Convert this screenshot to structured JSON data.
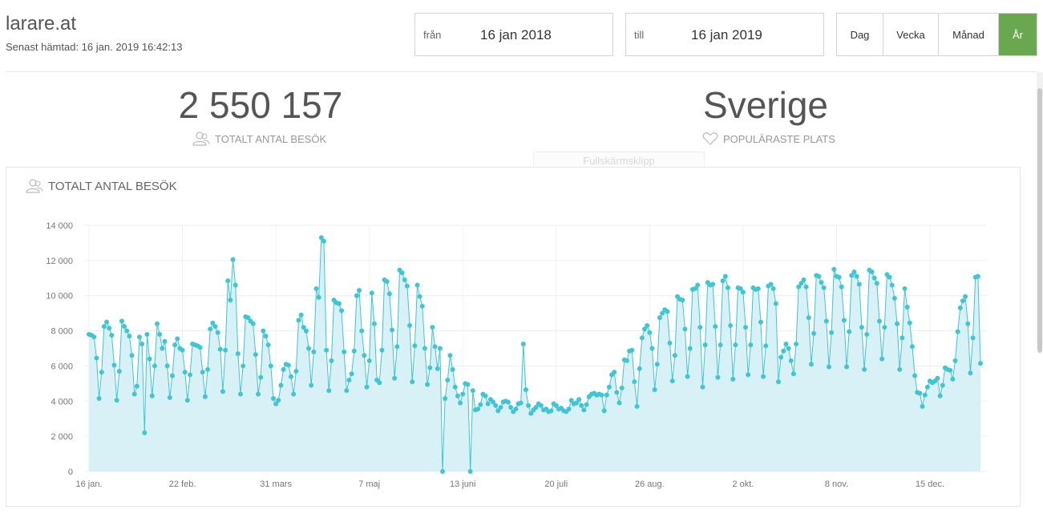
{
  "header": {
    "site_title": "larare.at",
    "last_fetched": "Senast hämtad: 16 jan. 2019 16:42:13"
  },
  "date_range": {
    "from_label": "från",
    "from_value": "16 jan 2018",
    "to_label": "till",
    "to_value": "16 jan 2019"
  },
  "range_buttons": {
    "day": "Dag",
    "week": "Vecka",
    "month": "Månad",
    "year": "År",
    "active": "year"
  },
  "stats": {
    "total_visits_value": "2 550 157",
    "total_visits_label": "TOTALT ANTAL BESÖK",
    "popular_place_value": "Sverige",
    "popular_place_label": "POPULÄRASTE PLATS"
  },
  "overlay": {
    "ghost_text": "Fullskärmsklipp"
  },
  "chart_card": {
    "title": "TOTALT ANTAL BESÖK"
  },
  "colors": {
    "accent_green": "#6aa84f",
    "series_line": "#3ec6d6",
    "series_fill": "#d6f0f5"
  },
  "chart_data": {
    "type": "area",
    "title": "TOTALT ANTAL BESÖK",
    "xlabel": "",
    "ylabel": "",
    "ylim": [
      0,
      14000
    ],
    "yticks": [
      0,
      2000,
      4000,
      6000,
      8000,
      10000,
      12000,
      14000
    ],
    "ytick_labels": [
      "0",
      "2 000",
      "4 000",
      "6 000",
      "8 000",
      "10 000",
      "12 000",
      "14 000"
    ],
    "xtick_labels": [
      "16 jan.",
      "22 feb.",
      "31 mars",
      "7 maj",
      "13 juni",
      "20 juli",
      "26 aug.",
      "2 okt.",
      "8 nov.",
      "15 dec."
    ],
    "xtick_days": [
      0,
      37,
      74,
      111,
      148,
      185,
      222,
      259,
      296,
      333
    ],
    "grid": true,
    "legend": "none",
    "series": [
      {
        "values": [
          7800,
          7750,
          7650,
          6450,
          4150,
          5650,
          8250,
          8500,
          8150,
          7750,
          6050,
          4050,
          5700,
          8550,
          8250,
          8000,
          7700,
          6600,
          4400,
          4850,
          7650,
          7250,
          2200,
          7800,
          6400,
          4300,
          6000,
          8400,
          7800,
          7000,
          7400,
          6000,
          4200,
          5450,
          7200,
          7550,
          7000,
          6900,
          5650,
          4050,
          5500,
          7250,
          7200,
          7150,
          7050,
          5650,
          4250,
          5800,
          8100,
          8450,
          8250,
          7900,
          6950,
          4550,
          6900,
          10850,
          9750,
          12050,
          10600,
          6700,
          4400,
          6000,
          8800,
          8750,
          8550,
          8400,
          6650,
          4400,
          5350,
          8000,
          7700,
          7200,
          6000,
          4150,
          3850,
          4050,
          4900,
          5800,
          6100,
          6050,
          5400,
          4400,
          5700,
          8600,
          8900,
          8200,
          8000,
          7000,
          4900,
          6800,
          10400,
          9900,
          13300,
          13100,
          6900,
          4600,
          6300,
          9750,
          9600,
          9550,
          9150,
          6800,
          4600,
          5200,
          5550,
          6850,
          10000,
          10300,
          8000,
          6600,
          4800,
          6300,
          10150,
          8400,
          5200,
          5050,
          6900,
          10900,
          10800,
          10100,
          8050,
          5300,
          7100,
          11450,
          11300,
          10900,
          10550,
          8300,
          5100,
          7150,
          10600,
          9950,
          9400,
          7000,
          4950,
          5900,
          8200,
          7100,
          5850,
          7000,
          0,
          4150,
          5200,
          6600,
          5800,
          4800,
          4300,
          3900,
          4400,
          5000,
          4950,
          0,
          4600,
          3500,
          3550,
          3800,
          4400,
          4300,
          3850,
          4100,
          3950,
          3750,
          3450,
          3650,
          3950,
          4000,
          3950,
          3650,
          3400,
          3550,
          3850,
          3900,
          7250,
          4650,
          3750,
          3300,
          3500,
          3650,
          3850,
          3750,
          3500,
          3550,
          3400,
          3450,
          3850,
          3750,
          3550,
          3600,
          3450,
          3400,
          3550,
          4050,
          3850,
          3900,
          4100,
          3750,
          3500,
          3800,
          4250,
          4400,
          4450,
          4350,
          4400,
          4350,
          3450,
          4350,
          4800,
          5500,
          5650,
          4500,
          3900,
          4750,
          6350,
          6300,
          6850,
          6900,
          5100,
          3700,
          5850,
          7600,
          8100,
          8300,
          7900,
          7000,
          4650,
          6100,
          8750,
          9000,
          9200,
          9100,
          7300,
          5150,
          6600,
          9950,
          9800,
          9750,
          8100,
          5400,
          7000,
          10350,
          10400,
          10600,
          8200,
          4800,
          7200,
          10750,
          10600,
          10650,
          8250,
          5350,
          7200,
          10850,
          11100,
          10450,
          8300,
          5250,
          7200,
          10450,
          10400,
          10200,
          8200,
          5500,
          7200,
          10450,
          10350,
          10400,
          8500,
          5400,
          7150,
          10550,
          10650,
          10400,
          9550,
          5100,
          6500,
          6850,
          7250,
          7000,
          6300,
          5550,
          7250,
          10500,
          10700,
          10900,
          10500,
          8750,
          6100,
          7850,
          11150,
          11100,
          10750,
          10450,
          8550,
          5950,
          7900,
          11500,
          11100,
          11050,
          10500,
          8600,
          5950,
          7950,
          11150,
          11350,
          11100,
          10650,
          8200,
          5800,
          7800,
          11450,
          11350,
          11000,
          10700,
          8550,
          6400,
          8200,
          11200,
          11050,
          10600,
          9850,
          8400,
          5800,
          7600,
          10400,
          9350,
          8450,
          7100,
          5450,
          4500,
          4450,
          3700,
          4350,
          4800,
          5150,
          5050,
          5150,
          5300,
          4300,
          4900,
          5900,
          5800,
          5750,
          5250,
          6300,
          7950,
          9300,
          9700,
          9950,
          8400,
          5600,
          7600,
          11050,
          11100,
          6150
        ]
      }
    ]
  }
}
